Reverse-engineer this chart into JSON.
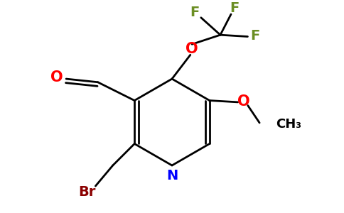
{
  "bg_color": "#ffffff",
  "bond_color": "#000000",
  "atom_colors": {
    "O": "#ff0000",
    "N": "#0000ff",
    "Br": "#8b0000",
    "F": "#6b8e23",
    "C": "#000000"
  },
  "figsize": [
    4.84,
    3.0
  ],
  "dpi": 100,
  "xlim": [
    0,
    10
  ],
  "ylim": [
    0,
    6.2
  ]
}
